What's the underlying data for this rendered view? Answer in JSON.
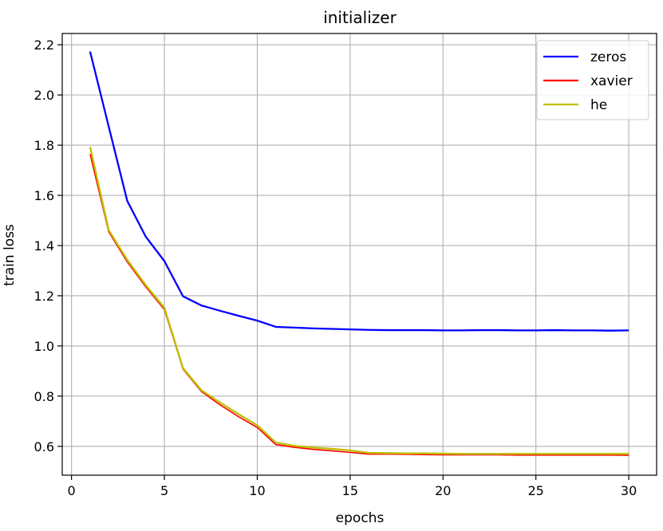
{
  "chart_data": {
    "type": "line",
    "title": "initializer",
    "xlabel": "epochs",
    "ylabel": "train loss",
    "xlim": [
      -0.5,
      31.5
    ],
    "ylim": [
      0.485,
      2.245
    ],
    "xticks": [
      0,
      5,
      10,
      15,
      20,
      25,
      30
    ],
    "yticks": [
      0.6,
      0.8,
      1.0,
      1.2,
      1.4,
      1.6,
      1.8,
      2.0,
      2.2
    ],
    "ytick_labels": [
      "0.6",
      "0.8",
      "1.0",
      "1.2",
      "1.4",
      "1.6",
      "1.8",
      "2.0",
      "2.2"
    ],
    "grid": true,
    "legend_position": "top-right",
    "x": [
      1,
      2,
      3,
      4,
      5,
      6,
      7,
      8,
      9,
      10,
      11,
      12,
      13,
      14,
      15,
      16,
      17,
      18,
      19,
      20,
      21,
      22,
      23,
      24,
      25,
      26,
      27,
      28,
      29,
      30
    ],
    "series": [
      {
        "name": "zeros",
        "color": "#0000ff",
        "values": [
          2.173,
          1.875,
          1.578,
          1.435,
          1.338,
          1.198,
          1.161,
          1.14,
          1.12,
          1.101,
          1.076,
          1.073,
          1.07,
          1.068,
          1.066,
          1.064,
          1.063,
          1.063,
          1.063,
          1.062,
          1.062,
          1.063,
          1.063,
          1.062,
          1.062,
          1.063,
          1.062,
          1.062,
          1.061,
          1.062
        ]
      },
      {
        "name": "xavier",
        "color": "#ff0000",
        "values": [
          1.765,
          1.455,
          1.335,
          1.235,
          1.145,
          0.908,
          0.818,
          0.765,
          0.718,
          0.675,
          0.607,
          0.596,
          0.588,
          0.582,
          0.576,
          0.569,
          0.569,
          0.568,
          0.567,
          0.566,
          0.566,
          0.566,
          0.566,
          0.565,
          0.565,
          0.565,
          0.565,
          0.565,
          0.565,
          0.564
        ]
      },
      {
        "name": "he",
        "color": "#bfbf00",
        "values": [
          1.793,
          1.462,
          1.343,
          1.242,
          1.152,
          0.912,
          0.823,
          0.774,
          0.728,
          0.684,
          0.615,
          0.602,
          0.595,
          0.59,
          0.584,
          0.574,
          0.573,
          0.572,
          0.572,
          0.571,
          0.57,
          0.57,
          0.57,
          0.57,
          0.57,
          0.57,
          0.57,
          0.57,
          0.57,
          0.57
        ]
      }
    ]
  }
}
